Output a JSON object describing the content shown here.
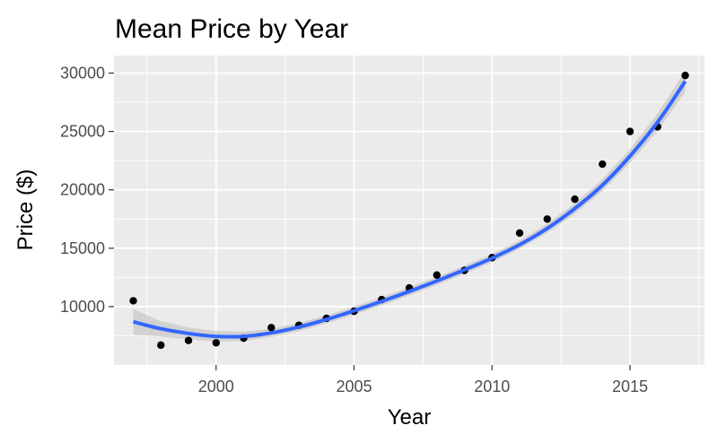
{
  "chart_data": {
    "type": "scatter",
    "title": "Mean Price by Year",
    "xlabel": "Year",
    "ylabel": "Price ($)",
    "xlim": [
      1996.3,
      2017.7
    ],
    "ylim": [
      5000,
      31500
    ],
    "x_ticks": [
      2000,
      2005,
      2010,
      2015
    ],
    "y_ticks": [
      10000,
      15000,
      20000,
      25000,
      30000
    ],
    "x_tick_labels": [
      "2000",
      "2005",
      "2010",
      "2015"
    ],
    "y_tick_labels": [
      "10000",
      "15000",
      "20000",
      "25000",
      "30000"
    ],
    "grid": true,
    "panel_background": "#ebebeb",
    "grid_color": "#ffffff",
    "point_color": "#000000",
    "smooth_color": "#3366ff",
    "ribbon_color": "#bfbfbf",
    "points": {
      "x": [
        1997,
        1998,
        1999,
        2000,
        2001,
        2002,
        2003,
        2004,
        2005,
        2006,
        2007,
        2008,
        2009,
        2010,
        2011,
        2012,
        2013,
        2014,
        2015,
        2016,
        2017
      ],
      "y": [
        10500,
        6700,
        7100,
        6900,
        7300,
        8200,
        8400,
        9000,
        9600,
        10600,
        11600,
        12700,
        13100,
        14200,
        16300,
        17500,
        19200,
        22200,
        25000,
        25400,
        29800
      ]
    },
    "smooth": {
      "x": [
        1997,
        1998,
        1999,
        2000,
        2001,
        2002,
        2003,
        2004,
        2005,
        2006,
        2007,
        2008,
        2009,
        2010,
        2011,
        2012,
        2013,
        2014,
        2015,
        2016,
        2017
      ],
      "y": [
        8700,
        8100,
        7700,
        7450,
        7450,
        7750,
        8250,
        8900,
        9650,
        10450,
        11300,
        12200,
        13150,
        14150,
        15300,
        16700,
        18400,
        20400,
        22900,
        25800,
        29300
      ],
      "lower": [
        7600,
        7450,
        7200,
        7000,
        7050,
        7400,
        7900,
        8550,
        9300,
        10100,
        10950,
        11850,
        12800,
        13800,
        14950,
        16300,
        17950,
        19900,
        22300,
        25050,
        28400
      ],
      "upper": [
        9800,
        8750,
        8200,
        7900,
        7850,
        8100,
        8600,
        9250,
        10000,
        10800,
        11650,
        12550,
        13500,
        14500,
        15650,
        17100,
        18850,
        20900,
        23500,
        26550,
        30200
      ]
    }
  }
}
